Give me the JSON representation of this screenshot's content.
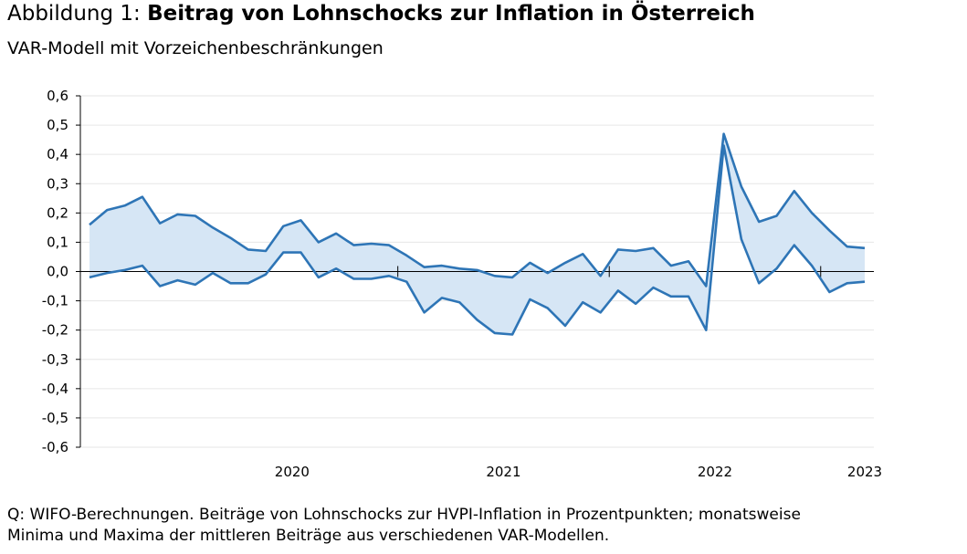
{
  "title": {
    "prefix": "Abbildung 1: ",
    "main": "Beitrag von Lohnschocks zur Inflation in Österreich"
  },
  "subtitle": "VAR-Modell mit Vorzeichenbeschränkungen",
  "note": {
    "line1": "Q: WIFO-Berechnungen. Beiträge von Lohnschocks zur HVPI-Inflation in Prozentpunkten; monatsweise",
    "line2": "Minima und Maxima der mittleren Beiträge aus verschiedenen VAR-Modellen."
  },
  "colors": {
    "line": "#2e75b6",
    "fill": "#d6e6f5",
    "grid": "#e6e6e6",
    "axis": "#000000"
  },
  "chart_data": {
    "type": "area",
    "x_axis": {
      "ticks": [
        "2020",
        "2021",
        "2022",
        "2023"
      ],
      "start": "2019-07",
      "end": "2023-03"
    },
    "ylim": [
      -0.6,
      0.6
    ],
    "yticks": [
      "0,6",
      "0,5",
      "0,4",
      "0,3",
      "0,2",
      "0,1",
      "0,0",
      "-0,1",
      "-0,2",
      "-0,3",
      "-0,4",
      "-0,5",
      "-0,6"
    ],
    "grid": true,
    "x": [
      "2019-07",
      "2019-08",
      "2019-09",
      "2019-10",
      "2019-11",
      "2019-12",
      "2020-01",
      "2020-02",
      "2020-03",
      "2020-04",
      "2020-05",
      "2020-06",
      "2020-07",
      "2020-08",
      "2020-09",
      "2020-10",
      "2020-11",
      "2020-12",
      "2021-01",
      "2021-02",
      "2021-03",
      "2021-04",
      "2021-05",
      "2021-06",
      "2021-07",
      "2021-08",
      "2021-09",
      "2021-10",
      "2021-11",
      "2021-12",
      "2022-01",
      "2022-02",
      "2022-03",
      "2022-04",
      "2022-05",
      "2022-06",
      "2022-07",
      "2022-08",
      "2022-09",
      "2022-10",
      "2022-11",
      "2022-12",
      "2023-01",
      "2023-02",
      "2023-03"
    ],
    "series": [
      {
        "values": [
          0.16,
          0.21,
          0.225,
          0.255,
          0.165,
          0.195,
          0.19,
          0.15,
          0.115,
          0.075,
          0.07,
          0.155,
          0.175,
          0.1,
          0.13,
          0.09,
          0.095,
          0.09,
          0.055,
          0.015,
          0.02,
          0.01,
          0.005,
          -0.015,
          -0.02,
          0.03,
          -0.005,
          0.03,
          0.06,
          -0.015,
          0.075,
          0.07,
          0.08,
          0.02,
          0.035,
          -0.05,
          0.47,
          0.29,
          0.17,
          0.19,
          0.275,
          0.2,
          0.14,
          0.085,
          0.08
        ]
      },
      {
        "values": [
          -0.02,
          -0.005,
          0.005,
          0.02,
          -0.05,
          -0.03,
          -0.045,
          -0.005,
          -0.04,
          -0.04,
          -0.01,
          0.065,
          0.065,
          -0.02,
          0.01,
          -0.025,
          -0.025,
          -0.015,
          -0.035,
          -0.14,
          -0.09,
          -0.105,
          -0.165,
          -0.21,
          -0.215,
          -0.095,
          -0.125,
          -0.185,
          -0.105,
          -0.14,
          -0.065,
          -0.11,
          -0.055,
          -0.085,
          -0.085,
          -0.2,
          0.43,
          0.11,
          -0.04,
          0.01,
          0.09,
          0.02,
          -0.07,
          -0.04,
          -0.035
        ]
      }
    ]
  }
}
